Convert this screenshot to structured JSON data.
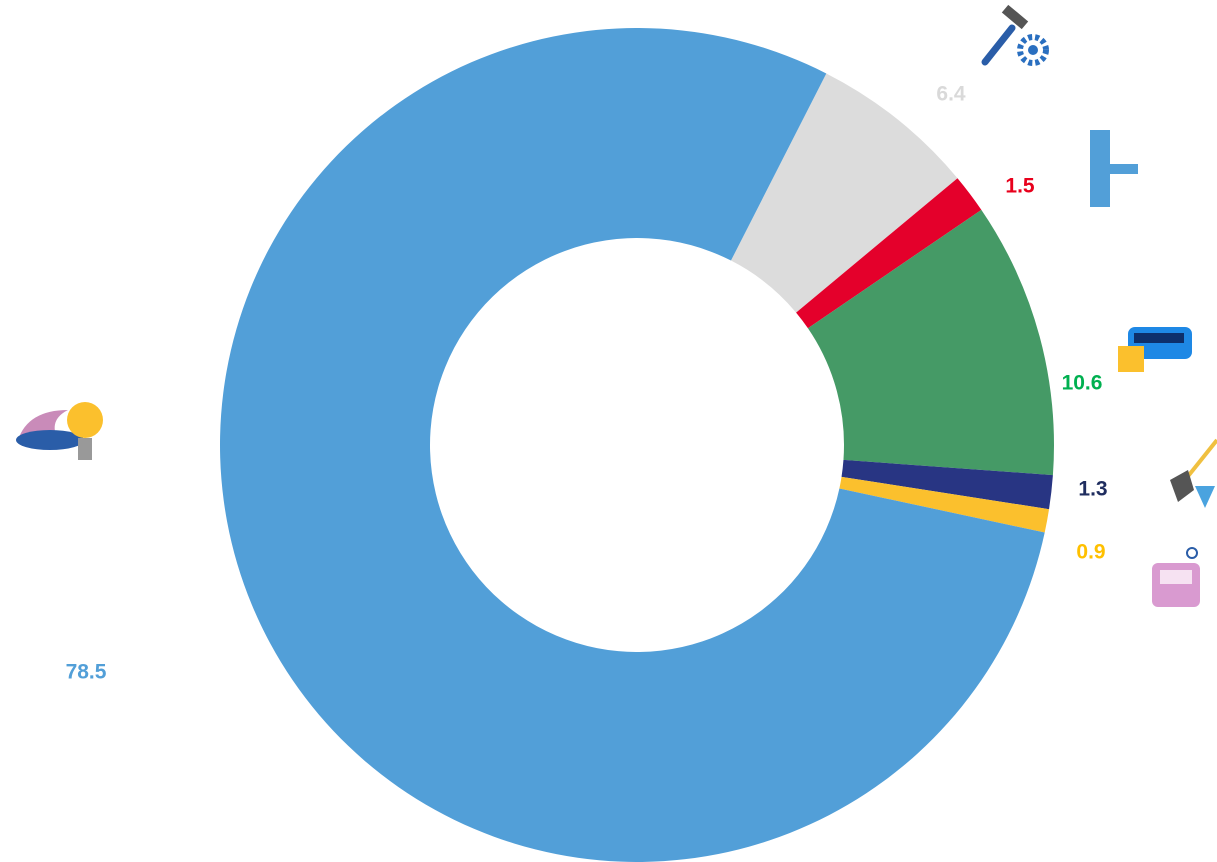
{
  "chart_data": {
    "type": "donut",
    "values": [
      6.4,
      1.5,
      10.6,
      1.3,
      0.9,
      78.5
    ],
    "colors": [
      "#dcdcdc",
      "#e4002b",
      "#459a66",
      "#283583",
      "#fbc02d",
      "#529fd8"
    ],
    "label_colors": [
      "#d9d9d9",
      "#e8001c",
      "#00b050",
      "#1f2d5f",
      "#ffc000",
      "#529fd8"
    ]
  }
}
